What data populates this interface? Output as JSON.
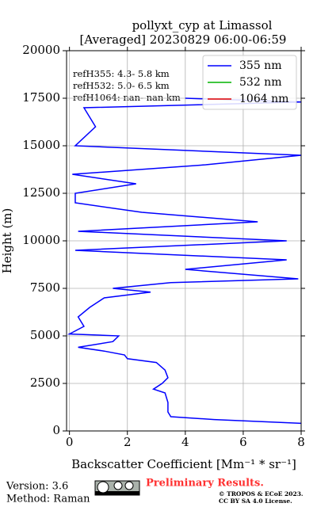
{
  "chart_data": {
    "type": "line",
    "title": "pollyxt_cyp at Limassol",
    "subtitle": "[Averaged] 20230829 06:00-06:59",
    "x_label": "Backscatter Coefficient [Mm⁻¹ * sr⁻¹]",
    "y_label": "Height (m)",
    "annotations": [
      "refH355:  4.3- 5.8 km",
      "refH532:  5.0- 6.5 km",
      "refH1064:  nan- nan km"
    ],
    "heights": [
      400,
      600,
      750,
      1000,
      1500,
      2000,
      2200,
      2500,
      2800,
      3200,
      3600,
      3800,
      4000,
      4200,
      4400,
      4700,
      5000,
      5100,
      5500,
      6000,
      6500,
      7000,
      7300,
      7500,
      7800,
      8000,
      8500,
      9000,
      9500,
      10000,
      10500,
      11000,
      11500,
      12000,
      12500,
      13000,
      13500,
      14000,
      14500,
      15000,
      16000,
      17000,
      17300,
      17500
    ],
    "series": [
      {
        "name": "355 nm",
        "color": "#0000ff",
        "values": [
          8,
          5,
          3.5,
          3.4,
          3.4,
          3.3,
          2.9,
          3.2,
          3.4,
          3.3,
          3.0,
          2.0,
          1.9,
          1.2,
          0.3,
          1.5,
          1.7,
          0,
          0.5,
          0.3,
          0.7,
          1.2,
          2.8,
          1.5,
          3.5,
          7.9,
          4.0,
          7.5,
          0.2,
          7.5,
          0.3,
          6.5,
          2.5,
          0.2,
          0.2,
          2.3,
          0.1,
          4.7,
          8.0,
          0.2,
          0.9,
          0.5,
          8.0,
          4.0
        ]
      },
      {
        "name": "532 nm",
        "color": "#00b400",
        "values": [
          null,
          null,
          null,
          null,
          null,
          null,
          null,
          null,
          null,
          null,
          null,
          null,
          null,
          null,
          null,
          null,
          null,
          null,
          null,
          null,
          null,
          null,
          null,
          null,
          null,
          null,
          null,
          null,
          null,
          null,
          null,
          null,
          null,
          null,
          null,
          null,
          null,
          null,
          null,
          null,
          null,
          null,
          null,
          null
        ]
      },
      {
        "name": "1064 nm",
        "color": "#e00000",
        "values": [
          null,
          null,
          null,
          null,
          null,
          null,
          null,
          null,
          null,
          null,
          null,
          null,
          null,
          null,
          null,
          null,
          null,
          null,
          null,
          null,
          null,
          null,
          null,
          null,
          null,
          null,
          null,
          null,
          null,
          null,
          null,
          null,
          null,
          null,
          null,
          null,
          null,
          null,
          null,
          null,
          null,
          null,
          null,
          null
        ]
      }
    ],
    "xlim": [
      -0.1,
      8
    ],
    "xticks": [
      0,
      2,
      4,
      6,
      8
    ],
    "ylim": [
      0,
      20000
    ],
    "yticks": [
      0,
      2500,
      5000,
      7500,
      10000,
      12500,
      15000,
      17500,
      20000
    ],
    "grid": true,
    "legend": "upper right",
    "footer": {
      "version": "Version: 3.6",
      "method": "Method: Raman",
      "status": "Preliminary Results.",
      "license": [
        "© TROPOS & ECoE 2023.",
        "CC BY SA 4.0 License."
      ]
    }
  }
}
